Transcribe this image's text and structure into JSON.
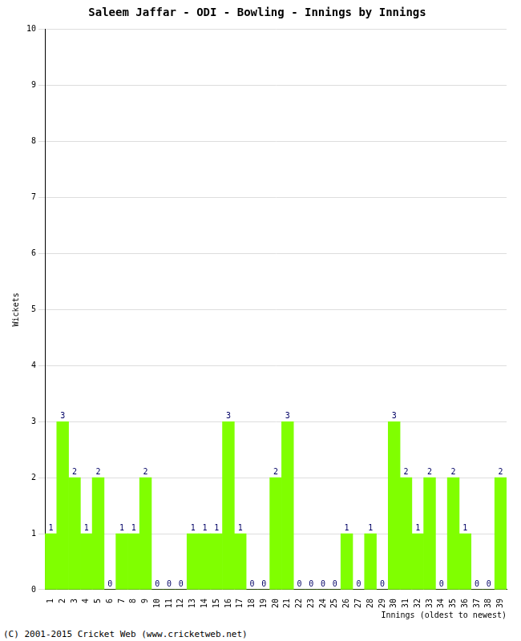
{
  "chart_data": {
    "type": "bar",
    "title": "Saleem Jaffar - ODI - Bowling - Innings by Innings",
    "x_label": "Innings (oldest to newest)",
    "y_label": "Wickets",
    "annotations": [
      "(C) 2001-2015 Cricket Web (www.cricketweb.net)"
    ],
    "categories": [
      "1",
      "2",
      "3",
      "4",
      "5",
      "6",
      "7",
      "8",
      "9",
      "10",
      "11",
      "12",
      "13",
      "14",
      "15",
      "16",
      "17",
      "18",
      "19",
      "20",
      "21",
      "22",
      "23",
      "24",
      "25",
      "26",
      "27",
      "28",
      "29",
      "30",
      "31",
      "32",
      "33",
      "34",
      "35",
      "36",
      "37",
      "38",
      "39"
    ],
    "values": [
      1,
      3,
      2,
      1,
      2,
      0,
      1,
      1,
      2,
      0,
      0,
      0,
      1,
      1,
      1,
      3,
      1,
      0,
      0,
      2,
      3,
      0,
      0,
      0,
      0,
      1,
      0,
      1,
      0,
      3,
      2,
      1,
      2,
      0,
      2,
      1,
      0,
      0,
      2
    ],
    "color": "#80ff00",
    "ylim": [
      0,
      10
    ],
    "yticks": [
      0,
      1,
      2,
      3,
      4,
      5,
      6,
      7,
      8,
      9,
      10
    ],
    "grid": true,
    "data_labels": true
  }
}
